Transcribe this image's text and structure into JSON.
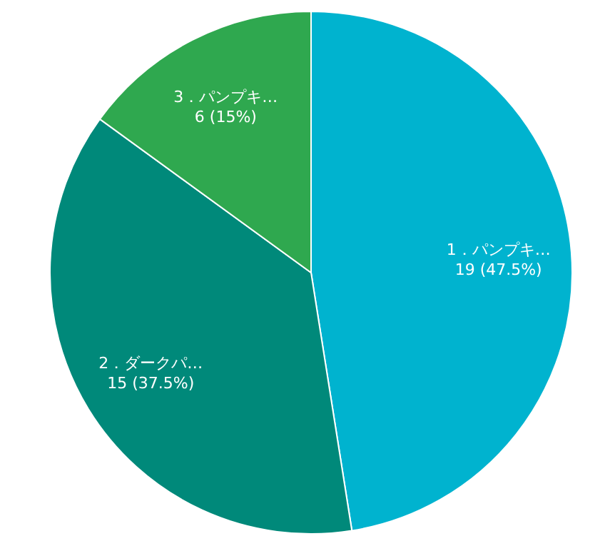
{
  "chart_data": {
    "type": "pie",
    "categories": [
      "1．パンプキ…",
      "2．ダークパ…",
      "3．パンプキ…"
    ],
    "values": [
      19,
      15,
      6
    ],
    "colors": [
      "#00b3cf",
      "#00897a",
      "#2fa84f"
    ],
    "value_labels": [
      "19 (47.5%)",
      "15 (37.5%)",
      "6 (15%)"
    ],
    "legend": false
  }
}
